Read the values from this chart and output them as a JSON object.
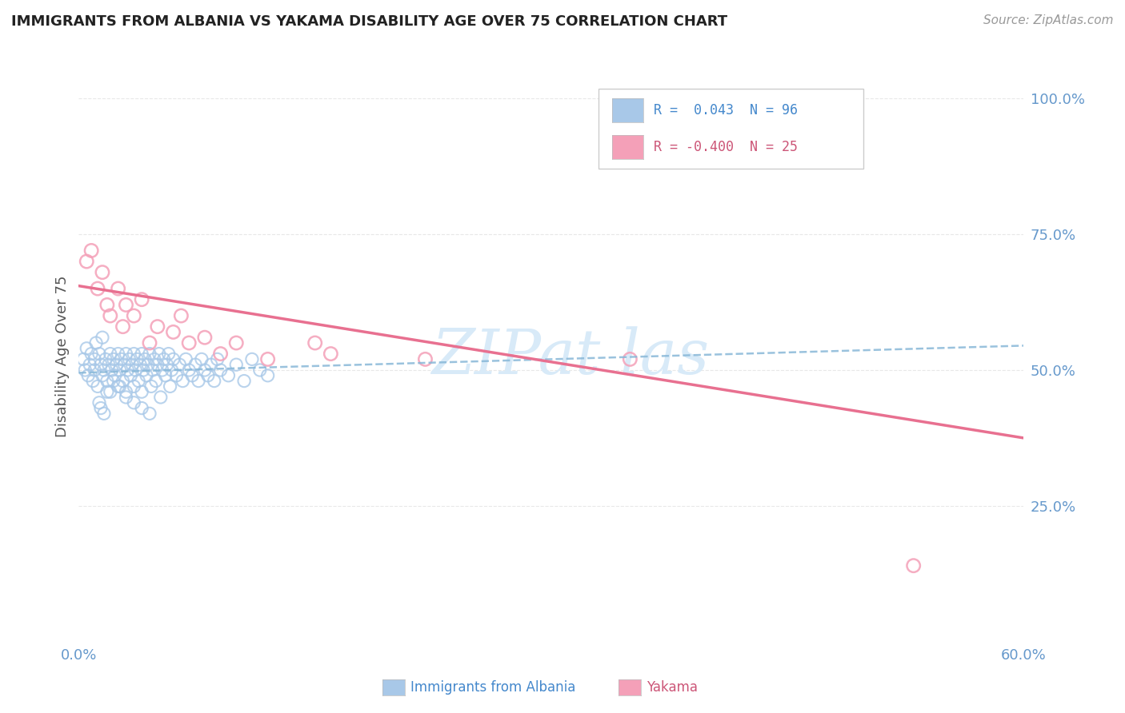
{
  "title": "IMMIGRANTS FROM ALBANIA VS YAKAMA DISABILITY AGE OVER 75 CORRELATION CHART",
  "source": "Source: ZipAtlas.com",
  "ylabel": "Disability Age Over 75",
  "x_min": 0.0,
  "x_max": 0.6,
  "y_min": 0.0,
  "y_max": 1.05,
  "right_yticks": [
    0.25,
    0.5,
    0.75,
    1.0
  ],
  "right_yticklabels": [
    "25.0%",
    "50.0%",
    "75.0%",
    "100.0%"
  ],
  "bottom_xticks": [
    0.0,
    0.1,
    0.2,
    0.3,
    0.4,
    0.5,
    0.6
  ],
  "bottom_xticklabels": [
    "0.0%",
    "",
    "",
    "",
    "",
    "",
    "60.0%"
  ],
  "legend_r_albania": "0.043",
  "legend_n_albania": "96",
  "legend_r_yakama": "-0.400",
  "legend_n_yakama": "25",
  "color_albania": "#a8c8e8",
  "color_yakama": "#f4a0b8",
  "color_line_albania": "#88b8d8",
  "color_line_yakama": "#e87090",
  "albania_x": [
    0.003,
    0.004,
    0.005,
    0.006,
    0.007,
    0.008,
    0.009,
    0.01,
    0.01,
    0.011,
    0.012,
    0.013,
    0.014,
    0.015,
    0.015,
    0.016,
    0.017,
    0.018,
    0.019,
    0.02,
    0.02,
    0.021,
    0.022,
    0.023,
    0.024,
    0.025,
    0.025,
    0.026,
    0.027,
    0.028,
    0.029,
    0.03,
    0.03,
    0.031,
    0.032,
    0.033,
    0.034,
    0.035,
    0.035,
    0.036,
    0.037,
    0.038,
    0.039,
    0.04,
    0.04,
    0.041,
    0.042,
    0.043,
    0.044,
    0.045,
    0.046,
    0.047,
    0.048,
    0.049,
    0.05,
    0.051,
    0.052,
    0.053,
    0.054,
    0.055,
    0.056,
    0.057,
    0.058,
    0.059,
    0.06,
    0.062,
    0.064,
    0.066,
    0.068,
    0.07,
    0.072,
    0.074,
    0.076,
    0.078,
    0.08,
    0.082,
    0.084,
    0.086,
    0.088,
    0.09,
    0.095,
    0.1,
    0.105,
    0.11,
    0.115,
    0.12,
    0.013,
    0.014,
    0.016,
    0.018,
    0.022,
    0.026,
    0.03,
    0.035,
    0.04,
    0.045
  ],
  "albania_y": [
    0.52,
    0.5,
    0.54,
    0.49,
    0.51,
    0.53,
    0.48,
    0.52,
    0.5,
    0.55,
    0.47,
    0.53,
    0.51,
    0.49,
    0.56,
    0.5,
    0.52,
    0.48,
    0.51,
    0.53,
    0.46,
    0.5,
    0.52,
    0.49,
    0.51,
    0.53,
    0.47,
    0.5,
    0.52,
    0.48,
    0.51,
    0.53,
    0.45,
    0.5,
    0.52,
    0.49,
    0.51,
    0.53,
    0.47,
    0.5,
    0.52,
    0.48,
    0.51,
    0.53,
    0.46,
    0.5,
    0.52,
    0.49,
    0.51,
    0.53,
    0.47,
    0.5,
    0.52,
    0.48,
    0.51,
    0.53,
    0.45,
    0.5,
    0.52,
    0.49,
    0.51,
    0.53,
    0.47,
    0.5,
    0.52,
    0.49,
    0.51,
    0.48,
    0.52,
    0.5,
    0.49,
    0.51,
    0.48,
    0.52,
    0.5,
    0.49,
    0.51,
    0.48,
    0.52,
    0.5,
    0.49,
    0.51,
    0.48,
    0.52,
    0.5,
    0.49,
    0.44,
    0.43,
    0.42,
    0.46,
    0.48,
    0.47,
    0.46,
    0.44,
    0.43,
    0.42
  ],
  "yakama_x": [
    0.005,
    0.008,
    0.012,
    0.015,
    0.018,
    0.02,
    0.025,
    0.028,
    0.03,
    0.035,
    0.04,
    0.045,
    0.05,
    0.06,
    0.065,
    0.07,
    0.08,
    0.09,
    0.1,
    0.12,
    0.15,
    0.16,
    0.22,
    0.35,
    0.53
  ],
  "yakama_y": [
    0.7,
    0.72,
    0.65,
    0.68,
    0.62,
    0.6,
    0.65,
    0.58,
    0.62,
    0.6,
    0.63,
    0.55,
    0.58,
    0.57,
    0.6,
    0.55,
    0.56,
    0.53,
    0.55,
    0.52,
    0.55,
    0.53,
    0.52,
    0.52,
    0.14
  ],
  "albania_trend_x": [
    0.0,
    0.6
  ],
  "albania_trend_y": [
    0.495,
    0.545
  ],
  "yakama_trend_x": [
    0.0,
    0.6
  ],
  "yakama_trend_y": [
    0.655,
    0.375
  ],
  "background_color": "#ffffff",
  "grid_color": "#e8e8e8",
  "watermark_text": "ZIPat las"
}
